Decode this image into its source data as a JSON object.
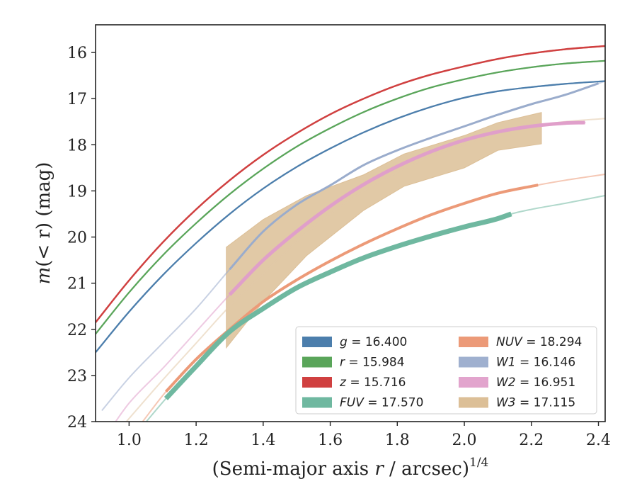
{
  "chart_data": {
    "type": "line",
    "xlabel": "(Semi-major axis r / arcsec)^{1/4}",
    "ylabel": "m(< r) (mag)",
    "xlim": [
      0.9,
      2.42
    ],
    "ylim": [
      24.0,
      15.4
    ],
    "y_inverted": true,
    "grid": false,
    "legend_placement": "lower-right",
    "legend_columns": 2,
    "x_ticks": [
      1.0,
      1.2,
      1.4,
      1.6,
      1.8,
      2.0,
      2.2,
      2.4
    ],
    "x_tick_labels": [
      "1.0",
      "1.2",
      "1.4",
      "1.6",
      "1.8",
      "2.0",
      "2.2",
      "2.4"
    ],
    "y_ticks": [
      16,
      17,
      18,
      19,
      20,
      21,
      22,
      23,
      24
    ],
    "y_tick_labels": [
      "16",
      "17",
      "18",
      "19",
      "20",
      "21",
      "22",
      "23",
      "24"
    ],
    "series": [
      {
        "id": "g",
        "legend_var": "g",
        "legend_value": "16.400",
        "color": "#4c7eac",
        "points": [
          [
            0.9,
            22.5
          ],
          [
            1.0,
            21.62
          ],
          [
            1.1,
            20.83
          ],
          [
            1.2,
            20.13
          ],
          [
            1.3,
            19.5
          ],
          [
            1.4,
            18.95
          ],
          [
            1.5,
            18.48
          ],
          [
            1.6,
            18.08
          ],
          [
            1.7,
            17.73
          ],
          [
            1.8,
            17.43
          ],
          [
            1.9,
            17.18
          ],
          [
            2.0,
            16.98
          ],
          [
            2.1,
            16.84
          ],
          [
            2.2,
            16.75
          ],
          [
            2.3,
            16.68
          ],
          [
            2.42,
            16.62
          ]
        ],
        "solid_to_x": 2.42,
        "solid_width": 2.2,
        "faint_width": 2.2
      },
      {
        "id": "r",
        "legend_var": "r",
        "legend_value": "15.984",
        "color": "#5aa55a",
        "points": [
          [
            0.9,
            22.1
          ],
          [
            1.0,
            21.2
          ],
          [
            1.1,
            20.4
          ],
          [
            1.2,
            19.7
          ],
          [
            1.3,
            19.07
          ],
          [
            1.4,
            18.52
          ],
          [
            1.5,
            18.04
          ],
          [
            1.6,
            17.64
          ],
          [
            1.7,
            17.29
          ],
          [
            1.8,
            17.0
          ],
          [
            1.9,
            16.76
          ],
          [
            2.0,
            16.58
          ],
          [
            2.1,
            16.43
          ],
          [
            2.2,
            16.32
          ],
          [
            2.3,
            16.24
          ],
          [
            2.42,
            16.18
          ]
        ],
        "solid_to_x": 2.42,
        "solid_width": 2.2,
        "faint_width": 2.2
      },
      {
        "id": "z",
        "legend_var": "z",
        "legend_value": "15.716",
        "color": "#d04040",
        "points": [
          [
            0.9,
            21.85
          ],
          [
            1.0,
            20.94
          ],
          [
            1.1,
            20.12
          ],
          [
            1.2,
            19.4
          ],
          [
            1.3,
            18.77
          ],
          [
            1.4,
            18.22
          ],
          [
            1.5,
            17.75
          ],
          [
            1.6,
            17.34
          ],
          [
            1.7,
            17.0
          ],
          [
            1.8,
            16.71
          ],
          [
            1.9,
            16.48
          ],
          [
            2.0,
            16.3
          ],
          [
            2.1,
            16.14
          ],
          [
            2.2,
            16.02
          ],
          [
            2.3,
            15.93
          ],
          [
            2.42,
            15.86
          ]
        ],
        "solid_to_x": 2.42,
        "solid_width": 2.4,
        "faint_width": 2.4
      },
      {
        "id": "FUV",
        "legend_var": "FUV",
        "legend_value": "17.570",
        "color": "#6fb8a0",
        "points": [
          [
            1.04,
            24.1
          ],
          [
            1.11,
            23.5
          ],
          [
            1.2,
            22.8
          ],
          [
            1.3,
            22.05
          ],
          [
            1.4,
            21.55
          ],
          [
            1.5,
            21.1
          ],
          [
            1.6,
            20.76
          ],
          [
            1.7,
            20.45
          ],
          [
            1.8,
            20.2
          ],
          [
            1.9,
            19.98
          ],
          [
            2.0,
            19.78
          ],
          [
            2.1,
            19.6
          ],
          [
            2.14,
            19.5
          ],
          [
            2.2,
            19.4
          ],
          [
            2.3,
            19.27
          ],
          [
            2.42,
            19.1
          ]
        ],
        "solid_from_x": 1.11,
        "solid_to_x": 2.14,
        "solid_width": 7,
        "faint_width": 2
      },
      {
        "id": "NUV",
        "legend_var": "NUV",
        "legend_value": "18.294",
        "color": "#ec9a78",
        "points": [
          [
            1.03,
            24.1
          ],
          [
            1.11,
            23.35
          ],
          [
            1.2,
            22.65
          ],
          [
            1.3,
            22.0
          ],
          [
            1.4,
            21.4
          ],
          [
            1.5,
            20.93
          ],
          [
            1.6,
            20.52
          ],
          [
            1.7,
            20.15
          ],
          [
            1.8,
            19.82
          ],
          [
            1.9,
            19.52
          ],
          [
            2.0,
            19.27
          ],
          [
            2.1,
            19.05
          ],
          [
            2.2,
            18.9
          ],
          [
            2.3,
            18.77
          ],
          [
            2.42,
            18.64
          ]
        ],
        "solid_from_x": 1.11,
        "solid_to_x": 2.22,
        "solid_width": 4,
        "faint_width": 2
      },
      {
        "id": "W1",
        "legend_var": "W1",
        "legend_value": "16.146",
        "color": "#9aaccc",
        "points": [
          [
            0.92,
            23.75
          ],
          [
            1.0,
            23.05
          ],
          [
            1.1,
            22.3
          ],
          [
            1.2,
            21.55
          ],
          [
            1.3,
            20.7
          ],
          [
            1.4,
            19.88
          ],
          [
            1.5,
            19.3
          ],
          [
            1.6,
            18.88
          ],
          [
            1.7,
            18.44
          ],
          [
            1.8,
            18.12
          ],
          [
            1.9,
            17.85
          ],
          [
            2.0,
            17.6
          ],
          [
            2.1,
            17.35
          ],
          [
            2.2,
            17.12
          ],
          [
            2.3,
            16.92
          ],
          [
            2.42,
            16.62
          ]
        ],
        "solid_from_x": 1.3,
        "solid_to_x": 2.4,
        "solid_width": 3,
        "faint_width": 2
      },
      {
        "id": "W2",
        "legend_var": "W2",
        "legend_value": "16.951",
        "color": "#e09fca",
        "points": [
          [
            0.95,
            24.1
          ],
          [
            1.0,
            23.6
          ],
          [
            1.1,
            22.85
          ],
          [
            1.2,
            22.05
          ],
          [
            1.3,
            21.25
          ],
          [
            1.4,
            20.5
          ],
          [
            1.5,
            19.88
          ],
          [
            1.6,
            19.33
          ],
          [
            1.7,
            18.86
          ],
          [
            1.8,
            18.47
          ],
          [
            1.9,
            18.15
          ],
          [
            2.0,
            17.9
          ],
          [
            2.1,
            17.72
          ],
          [
            2.2,
            17.6
          ],
          [
            2.3,
            17.53
          ],
          [
            2.36,
            17.52
          ]
        ],
        "solid_from_x": 1.3,
        "solid_to_x": 2.36,
        "solid_width": 5,
        "faint_width": 2
      },
      {
        "id": "W3",
        "legend_var": "W3",
        "legend_value": "17.115",
        "color": "#e2c8a8",
        "points": [
          [
            0.98,
            24.1
          ],
          [
            1.1,
            23.1
          ],
          [
            1.2,
            22.3
          ],
          [
            1.3,
            21.5
          ],
          [
            1.4,
            20.8
          ],
          [
            1.5,
            20.1
          ],
          [
            1.6,
            19.5
          ],
          [
            1.7,
            19.0
          ],
          [
            1.8,
            18.6
          ],
          [
            1.9,
            18.25
          ],
          [
            2.0,
            17.98
          ],
          [
            2.1,
            17.75
          ],
          [
            2.2,
            17.6
          ],
          [
            2.3,
            17.5
          ],
          [
            2.42,
            17.43
          ]
        ],
        "solid_to_x": 0.0,
        "solid_width": 2,
        "faint_width": 2,
        "band": {
          "color": "#dcbf97",
          "upper": [
            [
              1.29,
              20.22
            ],
            [
              1.4,
              19.62
            ],
            [
              1.53,
              19.1
            ],
            [
              1.7,
              18.65
            ],
            [
              1.82,
              18.2
            ],
            [
              2.0,
              17.8
            ],
            [
              2.1,
              17.52
            ],
            [
              2.23,
              17.3
            ]
          ],
          "lower": [
            [
              1.29,
              22.4
            ],
            [
              1.4,
              21.4
            ],
            [
              1.53,
              20.4
            ],
            [
              1.7,
              19.42
            ],
            [
              1.82,
              18.9
            ],
            [
              2.0,
              18.5
            ],
            [
              2.1,
              18.12
            ],
            [
              2.23,
              17.98
            ]
          ]
        }
      }
    ]
  }
}
